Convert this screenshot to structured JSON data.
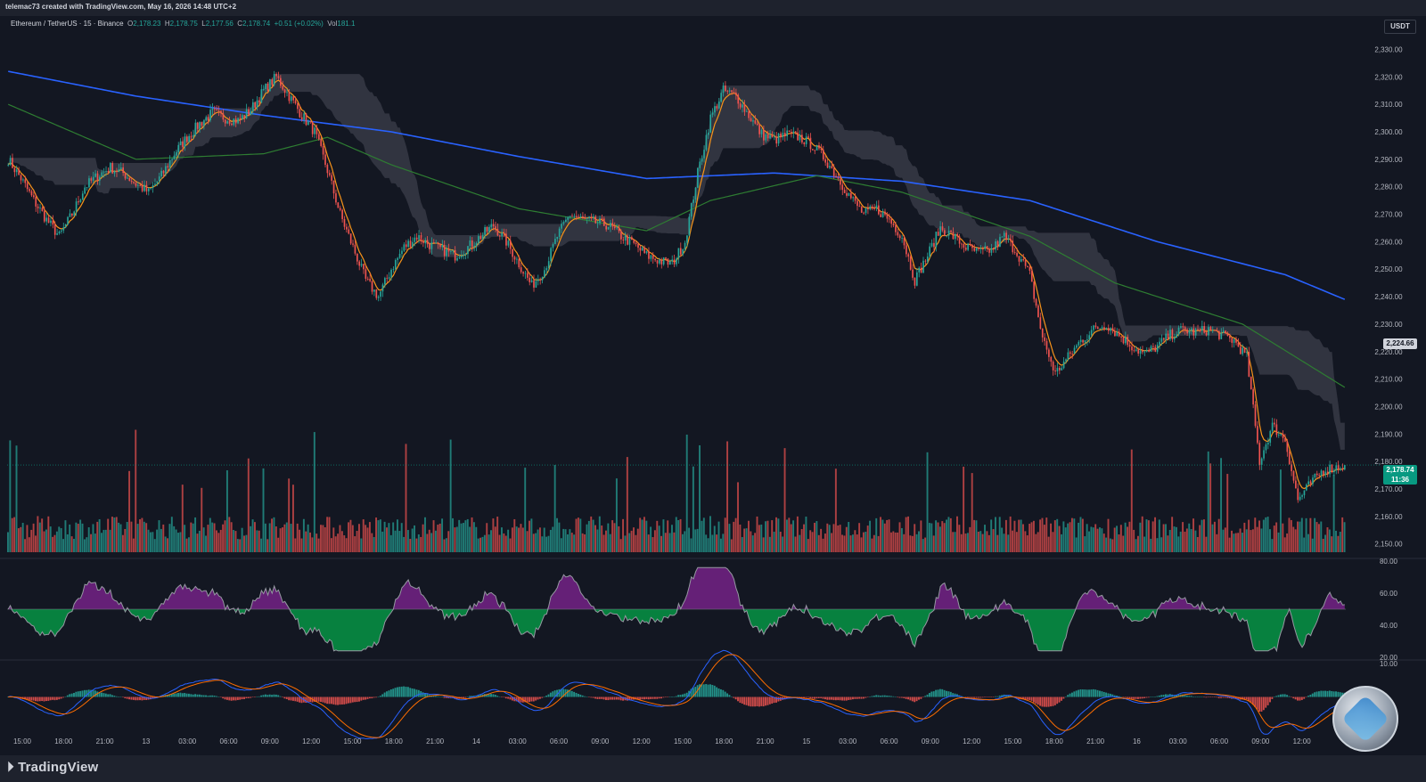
{
  "header": {
    "credit": "telemac73 created with TradingView.com, May 16, 2026 14:48 UTC+2"
  },
  "legend": {
    "symbol": "Ethereum / TetherUS · 15 · Binance",
    "open_label": "O",
    "open": "2,178.23",
    "high_label": "H",
    "high": "2,178.75",
    "low_label": "L",
    "low": "2,177.56",
    "close_label": "C",
    "close": "2,178.74",
    "change": "+0.51 (+0.02%)",
    "vol_label": "Vol",
    "vol": "181.1"
  },
  "price_scale": {
    "unit": "USDT",
    "last_price": "2,178.74",
    "countdown": "11:36",
    "marker_price": "2,224.66"
  },
  "footer": {
    "brand": "TradingView"
  },
  "colors": {
    "background": "#131722",
    "up": "#26a69a",
    "down": "#ef5350",
    "ema_fast": "#f7931a",
    "sma_mid": "#2e7d32",
    "sma_slow": "#2962ff",
    "cloud": "#4a4d59",
    "rsi_line": "#9598a1",
    "rsi_up_fill": "#9c27b0",
    "rsi_down_fill": "#00c853",
    "macd_line": "#2962ff",
    "signal_line": "#ff6d00"
  },
  "chart_data": {
    "type": "candlestick",
    "main_pane": {
      "y_ticks": [
        2330,
        2320,
        2310,
        2300,
        2290,
        2280,
        2270,
        2260,
        2250,
        2240,
        2230,
        2220,
        2210,
        2200,
        2190,
        2180,
        2170,
        2160,
        2150
      ],
      "ylim": [
        2147,
        2335
      ],
      "x_ticks": [
        "15:00",
        "18:00",
        "21:00",
        "13",
        "03:00",
        "06:00",
        "09:00",
        "12:00",
        "15:00",
        "18:00",
        "21:00",
        "14",
        "03:00",
        "06:00",
        "09:00",
        "12:00",
        "15:00",
        "18:00",
        "21:00",
        "15",
        "03:00",
        "06:00",
        "09:00",
        "12:00",
        "15:00",
        "18:00",
        "21:00",
        "16",
        "03:00",
        "06:00",
        "09:00",
        "12:00"
      ],
      "price_path_keypoints": [
        [
          0,
          2290
        ],
        [
          6,
          2283
        ],
        [
          12,
          2275
        ],
        [
          18,
          2268
        ],
        [
          24,
          2262
        ],
        [
          30,
          2270
        ],
        [
          36,
          2280
        ],
        [
          42,
          2284
        ],
        [
          48,
          2287
        ],
        [
          54,
          2285
        ],
        [
          60,
          2281
        ],
        [
          66,
          2278
        ],
        [
          72,
          2284
        ],
        [
          78,
          2292
        ],
        [
          84,
          2298
        ],
        [
          90,
          2303
        ],
        [
          96,
          2307
        ],
        [
          102,
          2305
        ],
        [
          108,
          2304
        ],
        [
          114,
          2308
        ],
        [
          120,
          2315
        ],
        [
          126,
          2320
        ],
        [
          132,
          2313
        ],
        [
          138,
          2306
        ],
        [
          144,
          2300
        ],
        [
          150,
          2286
        ],
        [
          156,
          2270
        ],
        [
          162,
          2258
        ],
        [
          168,
          2246
        ],
        [
          174,
          2240
        ],
        [
          180,
          2250
        ],
        [
          186,
          2258
        ],
        [
          192,
          2262
        ],
        [
          198,
          2259
        ],
        [
          204,
          2257
        ],
        [
          210,
          2255
        ],
        [
          216,
          2258
        ],
        [
          222,
          2262
        ],
        [
          228,
          2266
        ],
        [
          234,
          2260
        ],
        [
          240,
          2252
        ],
        [
          246,
          2244
        ],
        [
          252,
          2250
        ],
        [
          258,
          2262
        ],
        [
          264,
          2270
        ],
        [
          270,
          2268
        ],
        [
          276,
          2267
        ],
        [
          282,
          2266
        ],
        [
          288,
          2262
        ],
        [
          294,
          2259
        ],
        [
          300,
          2255
        ],
        [
          306,
          2253
        ],
        [
          312,
          2252
        ],
        [
          318,
          2260
        ],
        [
          324,
          2285
        ],
        [
          330,
          2305
        ],
        [
          336,
          2315
        ],
        [
          342,
          2313
        ],
        [
          348,
          2306
        ],
        [
          354,
          2299
        ],
        [
          360,
          2297
        ],
        [
          366,
          2299
        ],
        [
          372,
          2298
        ],
        [
          378,
          2295
        ],
        [
          384,
          2290
        ],
        [
          390,
          2283
        ],
        [
          396,
          2276
        ],
        [
          402,
          2270
        ],
        [
          408,
          2272
        ],
        [
          414,
          2268
        ],
        [
          420,
          2262
        ],
        [
          426,
          2246
        ],
        [
          432,
          2255
        ],
        [
          438,
          2265
        ],
        [
          444,
          2262
        ],
        [
          450,
          2258
        ],
        [
          456,
          2256
        ],
        [
          462,
          2257
        ],
        [
          468,
          2262
        ],
        [
          474,
          2256
        ],
        [
          480,
          2248
        ],
        [
          486,
          2225
        ],
        [
          492,
          2212
        ],
        [
          498,
          2218
        ],
        [
          504,
          2224
        ],
        [
          510,
          2228
        ],
        [
          516,
          2230
        ],
        [
          522,
          2226
        ],
        [
          528,
          2222
        ],
        [
          534,
          2219
        ],
        [
          540,
          2222
        ],
        [
          546,
          2226
        ],
        [
          552,
          2228
        ],
        [
          558,
          2227
        ],
        [
          564,
          2228
        ],
        [
          570,
          2226
        ],
        [
          576,
          2224
        ],
        [
          582,
          2218
        ],
        [
          588,
          2180
        ],
        [
          594,
          2193
        ],
        [
          600,
          2188
        ],
        [
          606,
          2166
        ],
        [
          612,
          2172
        ],
        [
          618,
          2177
        ],
        [
          624,
          2178
        ],
        [
          628,
          2178.74
        ]
      ],
      "sma_slow_keypoints": [
        [
          0,
          2322
        ],
        [
          60,
          2313
        ],
        [
          120,
          2306
        ],
        [
          180,
          2300
        ],
        [
          240,
          2291
        ],
        [
          300,
          2283
        ],
        [
          360,
          2285
        ],
        [
          420,
          2282
        ],
        [
          480,
          2275
        ],
        [
          540,
          2260
        ],
        [
          600,
          2248
        ],
        [
          628,
          2239
        ]
      ],
      "sma_mid_keypoints": [
        [
          0,
          2310
        ],
        [
          60,
          2290
        ],
        [
          120,
          2292
        ],
        [
          150,
          2298
        ],
        [
          180,
          2288
        ],
        [
          240,
          2272
        ],
        [
          300,
          2264
        ],
        [
          330,
          2275
        ],
        [
          380,
          2284
        ],
        [
          420,
          2278
        ],
        [
          480,
          2262
        ],
        [
          520,
          2245
        ],
        [
          580,
          2230
        ],
        [
          628,
          2207
        ]
      ],
      "volume_ylim": [
        0,
        100
      ]
    },
    "rsi_pane": {
      "y_ticks": [
        80,
        60,
        40,
        20
      ],
      "ylim": [
        20,
        80
      ],
      "midline": 50
    },
    "macd_pane": {
      "y_ticks": [
        10
      ],
      "ylim": [
        -10,
        10
      ]
    }
  }
}
